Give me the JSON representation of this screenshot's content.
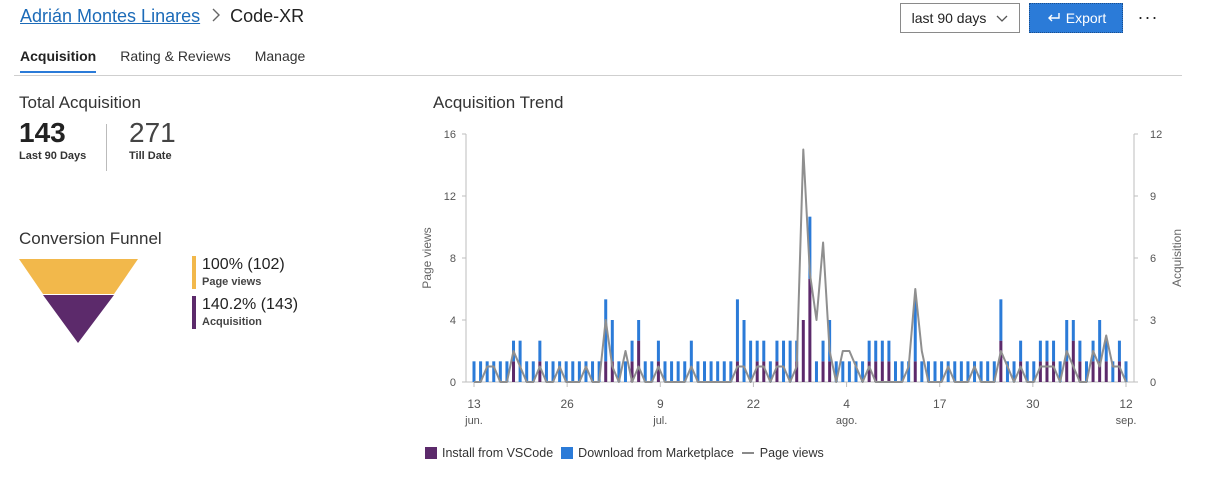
{
  "breadcrumb": {
    "publisher": "Adrián Montes Linares",
    "separator": ">",
    "extension": "Code-XR"
  },
  "header": {
    "range": "last 90 days",
    "export_label": "Export",
    "more_label": "···"
  },
  "tabs": [
    {
      "label": "Acquisition",
      "active": true
    },
    {
      "label": "Rating & Reviews"
    },
    {
      "label": "Manage"
    }
  ],
  "total_acquisition": {
    "title": "Total Acquisition",
    "last90_value": "143",
    "last90_label": "Last 90 Days",
    "till_date_value": "271",
    "till_date_label": "Till Date"
  },
  "funnel": {
    "title": "Conversion Funnel",
    "stages": [
      {
        "pct": "100% (102)",
        "name": "Page views",
        "color": "#f2b84b"
      },
      {
        "pct": "140.2% (143)",
        "name": "Acquisition",
        "color": "#5c2a6b"
      }
    ]
  },
  "trend": {
    "title": "Acquisition Trend",
    "left_axis_label": "Page views",
    "right_axis_label": "Acquisition",
    "legend": {
      "install": "Install from VSCode",
      "download": "Download from Marketplace",
      "pageviews": "Page views"
    },
    "colors": {
      "install": "#5c2a6b",
      "download": "#2b7bd8",
      "pageviews": "#8f8f8f"
    }
  },
  "chart_data": {
    "type": "bar",
    "title": "Acquisition Trend",
    "ylabel": "Page views",
    "y2label": "Acquisition",
    "ylim": [
      0,
      16
    ],
    "y2lim": [
      0,
      12
    ],
    "left_ticks": [
      "0",
      "4",
      "8",
      "12",
      "16"
    ],
    "right_ticks": [
      "0",
      "3",
      "6",
      "9",
      "12"
    ],
    "x_ticks": [
      {
        "day": 13,
        "label": "13",
        "sub": "jun."
      },
      {
        "day": 26,
        "label": "26",
        "sub": ""
      },
      {
        "day": 39,
        "label": "9",
        "sub": "jul."
      },
      {
        "day": 52,
        "label": "22",
        "sub": ""
      },
      {
        "day": 65,
        "label": "4",
        "sub": "ago."
      },
      {
        "day": 78,
        "label": "17",
        "sub": ""
      },
      {
        "day": 91,
        "label": "30",
        "sub": ""
      },
      {
        "day": 104,
        "label": "12",
        "sub": "sep."
      }
    ],
    "series": [
      {
        "name": "Install from VSCode",
        "axis": "Acquisition",
        "values": [
          0,
          0,
          0,
          0,
          0,
          0,
          1,
          0,
          0,
          0,
          1,
          0,
          0,
          0,
          0,
          0,
          0,
          0,
          0,
          0,
          1,
          1,
          0,
          0,
          1,
          2,
          0,
          0,
          1,
          0,
          0,
          0,
          0,
          0,
          0,
          0,
          0,
          0,
          0,
          0,
          1,
          0,
          0,
          1,
          1,
          0,
          1,
          0,
          0,
          1,
          3,
          5,
          0,
          1,
          1,
          0,
          0,
          0,
          0,
          0,
          1,
          1,
          1,
          1,
          0,
          0,
          0,
          1,
          0,
          0,
          0,
          0,
          0,
          0,
          0,
          0,
          0,
          0,
          0,
          0,
          2,
          0,
          0,
          1,
          0,
          0,
          1,
          1,
          1,
          0,
          1,
          2,
          1,
          0,
          1,
          1,
          1,
          0,
          1,
          0
        ]
      },
      {
        "name": "Download from Marketplace",
        "axis": "Acquisition",
        "values": [
          1,
          1,
          1,
          1,
          1,
          1,
          1,
          2,
          1,
          1,
          1,
          1,
          1,
          1,
          1,
          1,
          1,
          1,
          1,
          1,
          3,
          2,
          1,
          1,
          1,
          1,
          1,
          1,
          1,
          1,
          1,
          1,
          1,
          2,
          1,
          1,
          1,
          1,
          1,
          1,
          3,
          3,
          2,
          1,
          1,
          1,
          1,
          2,
          2,
          1,
          0,
          3,
          1,
          1,
          2,
          1,
          1,
          1,
          1,
          1,
          1,
          1,
          1,
          1,
          1,
          1,
          1,
          3,
          1,
          1,
          1,
          1,
          1,
          1,
          1,
          1,
          1,
          1,
          1,
          1,
          2,
          1,
          1,
          1,
          1,
          1,
          1,
          1,
          1,
          1,
          2,
          1,
          1,
          1,
          1,
          2,
          1,
          1,
          1,
          1
        ]
      },
      {
        "name": "Page views",
        "axis": "Page views",
        "values": [
          0,
          0,
          1,
          1,
          0,
          0,
          2,
          1,
          0,
          0,
          1,
          0,
          0,
          1,
          0,
          0,
          0,
          1,
          0,
          0,
          4,
          1,
          0,
          2,
          0,
          1,
          0,
          0,
          1,
          0,
          0,
          0,
          0,
          1,
          0,
          0,
          0,
          0,
          0,
          0,
          1,
          1,
          0,
          1,
          1,
          0,
          1,
          1,
          0,
          1,
          15,
          7,
          4,
          9,
          2,
          0,
          2,
          2,
          1,
          0,
          1,
          0,
          0,
          0,
          0,
          0,
          1,
          6,
          2,
          0,
          0,
          0,
          1,
          0,
          0,
          0,
          1,
          0,
          0,
          0,
          2,
          1,
          0,
          1,
          0,
          0,
          1,
          1,
          1,
          0,
          2,
          1,
          0,
          0,
          2,
          1,
          3,
          1,
          1,
          0
        ]
      }
    ]
  }
}
